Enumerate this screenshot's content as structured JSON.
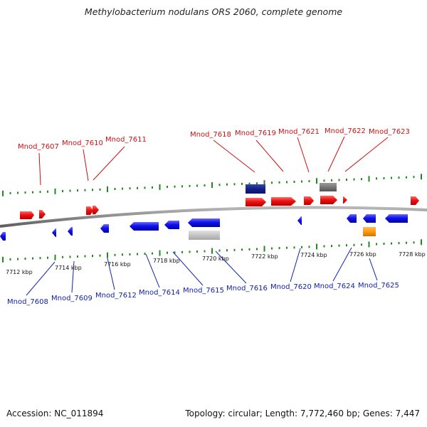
{
  "title": "Methylobacterium nodulans ORS 2060, complete genome",
  "footer": {
    "accession": "Accession: NC_011894",
    "summary": "Topology: circular; Length: 7,772,460 bp; Genes: 7,447"
  },
  "colors": {
    "forward_gene": "#ee1111",
    "reverse_gene": "#1111ee",
    "label_forward": "#cc1111",
    "label_reverse": "#1122aa",
    "tick": "#228822",
    "backbone": "#888888",
    "dark_feature": "#112288",
    "gray_feature": "#777777",
    "light_gray_feature": "#c4c4c4",
    "orange_feature": "#ff9911"
  },
  "scale_labels": [
    "7712 kbp",
    "7714 kbp",
    "7716 kbp",
    "7718 kbp",
    "7720 kbp",
    "7722 kbp",
    "7724 kbp",
    "7726 kbp",
    "7728 kbp"
  ],
  "top_labels": [
    "Mnod_7607",
    "Mnod_7610",
    "Mnod_7611",
    "Mnod_7618",
    "Mnod_7619",
    "Mnod_7621",
    "Mnod_7622",
    "Mnod_7623"
  ],
  "bottom_labels": [
    "Mnod_7608",
    "Mnod_7609",
    "Mnod_7612",
    "Mnod_7614",
    "Mnod_7615",
    "Mnod_7616",
    "Mnod_7620",
    "Mnod_7624",
    "Mnod_7625"
  ]
}
